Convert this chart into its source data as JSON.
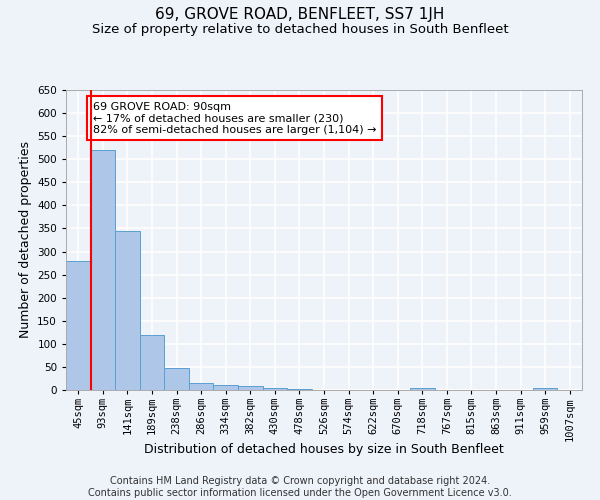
{
  "title": "69, GROVE ROAD, BENFLEET, SS7 1JH",
  "subtitle": "Size of property relative to detached houses in South Benfleet",
  "xlabel": "Distribution of detached houses by size in South Benfleet",
  "ylabel": "Number of detached properties",
  "categories": [
    "45sqm",
    "93sqm",
    "141sqm",
    "189sqm",
    "238sqm",
    "286sqm",
    "334sqm",
    "382sqm",
    "430sqm",
    "478sqm",
    "526sqm",
    "574sqm",
    "622sqm",
    "670sqm",
    "718sqm",
    "767sqm",
    "815sqm",
    "863sqm",
    "911sqm",
    "959sqm",
    "1007sqm"
  ],
  "values": [
    280,
    520,
    345,
    120,
    48,
    15,
    10,
    8,
    5,
    3,
    0,
    0,
    0,
    0,
    5,
    0,
    0,
    0,
    0,
    5,
    0
  ],
  "bar_color": "#aec6e8",
  "bar_edge_color": "#5a9fd4",
  "red_line_x": 0,
  "annotation_text": "69 GROVE ROAD: 90sqm\n← 17% of detached houses are smaller (230)\n82% of semi-detached houses are larger (1,104) →",
  "annotation_box_color": "white",
  "annotation_box_edge_color": "red",
  "ylim": [
    0,
    650
  ],
  "yticks": [
    0,
    50,
    100,
    150,
    200,
    250,
    300,
    350,
    400,
    450,
    500,
    550,
    600,
    650
  ],
  "background_color": "#eef2f9",
  "grid_color": "white",
  "footer_text": "Contains HM Land Registry data © Crown copyright and database right 2024.\nContains public sector information licensed under the Open Government Licence v3.0.",
  "title_fontsize": 11,
  "subtitle_fontsize": 9.5,
  "axis_label_fontsize": 9,
  "tick_fontsize": 7.5,
  "footer_fontsize": 7
}
